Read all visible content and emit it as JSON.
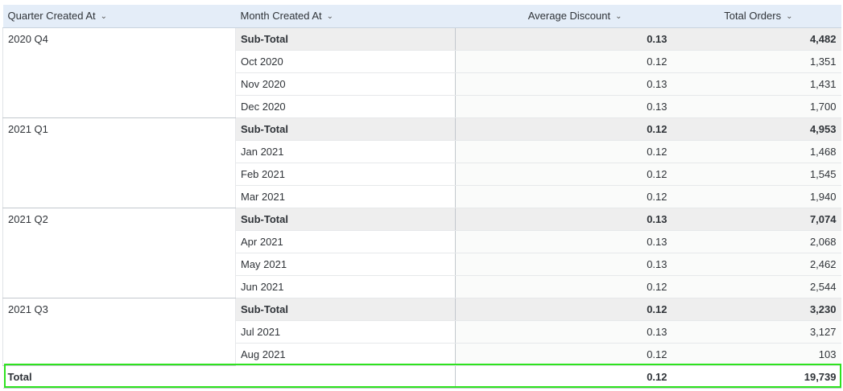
{
  "columns": {
    "quarter": "Quarter Created At",
    "month": "Month Created At",
    "avg_discount": "Average Discount",
    "total_orders": "Total Orders"
  },
  "icons": {
    "sort": "chevron-down-icon"
  },
  "groups": [
    {
      "quarter": "2020 Q4",
      "subtotal": {
        "label": "Sub-Total",
        "avg_discount": "0.13",
        "total_orders": "4,482"
      },
      "rows": [
        {
          "month": "Oct 2020",
          "avg_discount": "0.12",
          "total_orders": "1,351"
        },
        {
          "month": "Nov 2020",
          "avg_discount": "0.13",
          "total_orders": "1,431"
        },
        {
          "month": "Dec 2020",
          "avg_discount": "0.13",
          "total_orders": "1,700"
        }
      ]
    },
    {
      "quarter": "2021 Q1",
      "subtotal": {
        "label": "Sub-Total",
        "avg_discount": "0.12",
        "total_orders": "4,953"
      },
      "rows": [
        {
          "month": "Jan 2021",
          "avg_discount": "0.12",
          "total_orders": "1,468"
        },
        {
          "month": "Feb 2021",
          "avg_discount": "0.12",
          "total_orders": "1,545"
        },
        {
          "month": "Mar 2021",
          "avg_discount": "0.12",
          "total_orders": "1,940"
        }
      ]
    },
    {
      "quarter": "2021 Q2",
      "subtotal": {
        "label": "Sub-Total",
        "avg_discount": "0.13",
        "total_orders": "7,074"
      },
      "rows": [
        {
          "month": "Apr 2021",
          "avg_discount": "0.13",
          "total_orders": "2,068"
        },
        {
          "month": "May 2021",
          "avg_discount": "0.13",
          "total_orders": "2,462"
        },
        {
          "month": "Jun 2021",
          "avg_discount": "0.12",
          "total_orders": "2,544"
        }
      ]
    },
    {
      "quarter": "2021 Q3",
      "subtotal": {
        "label": "Sub-Total",
        "avg_discount": "0.12",
        "total_orders": "3,230"
      },
      "rows": [
        {
          "month": "Jul 2021",
          "avg_discount": "0.13",
          "total_orders": "3,127"
        },
        {
          "month": "Aug 2021",
          "avg_discount": "0.12",
          "total_orders": "103"
        }
      ]
    }
  ],
  "total": {
    "label": "Total",
    "avg_discount": "0.12",
    "total_orders": "19,739"
  },
  "highlight_color": "#2ee21f"
}
